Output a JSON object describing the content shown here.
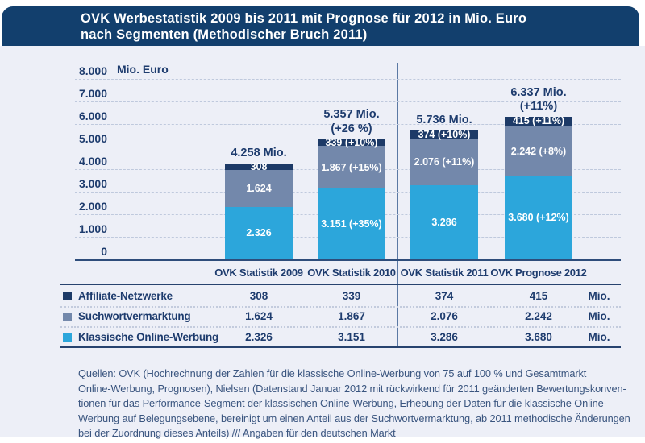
{
  "header": {
    "title_line1": "OVK Werbestatistik 2009 bis 2011 mit Prognose für 2012 in Mio. Euro",
    "title_line2": "nach Segmenten (Methodischer Bruch 2011)"
  },
  "colors": {
    "header_bg": "#123f6d",
    "panel_bg": "#edeff7",
    "text_navy": "#1e3c6e",
    "affiliate": "#1d3a67",
    "suchwort": "#7388ab",
    "klassisch": "#2ca6db",
    "divider": "#5b79a4"
  },
  "chart_data": {
    "type": "bar",
    "stacked": true,
    "unit": "Mio. Euro",
    "ylim": [
      0,
      8000
    ],
    "ytick_step": 1000,
    "yticks": [
      "0",
      "1.000",
      "2.000",
      "3.000",
      "4.000",
      "5.000",
      "6.000",
      "7.000",
      "8.000"
    ],
    "grid": "dashed horizontal",
    "categories": [
      "OVK Statistik 2009",
      "OVK Statistik 2010",
      "OVK Statistik 2011",
      "OVK Prognose 2012"
    ],
    "totals": [
      {
        "label": "4.258 Mio.",
        "sub": ""
      },
      {
        "label": "5.357 Mio.",
        "sub": "(+26 %)"
      },
      {
        "label": "5.736 Mio.",
        "sub": ""
      },
      {
        "label": "6.337 Mio.",
        "sub": "(+11%)"
      }
    ],
    "series": [
      {
        "name": "Affiliate-Netzwerke",
        "color": "#1d3a67",
        "values": [
          308,
          339,
          374,
          415
        ],
        "labels": [
          "308",
          "339 (+10%)",
          "374 (+10%)",
          "415 (+11%)"
        ]
      },
      {
        "name": "Suchwortvermarktung",
        "color": "#7388ab",
        "values": [
          1624,
          1867,
          2076,
          2242
        ],
        "labels": [
          "1.624",
          "1.867 (+15%)",
          "2.076 (+11%)",
          "2.242 (+8%)"
        ]
      },
      {
        "name": "Klassische Online-Werbung",
        "color": "#2ca6db",
        "values": [
          2326,
          3151,
          3286,
          3680
        ],
        "labels": [
          "2.326",
          "3.151 (+35%)",
          "3.286",
          "3.680 (+12%)"
        ]
      }
    ],
    "note": "Vertical divider separates OVK Statistik 2010 and OVK Statistik 2011 (Methodischer Bruch)"
  },
  "table": {
    "headers": [
      "OVK Statistik 2009",
      "OVK Statistik 2010",
      "OVK Statistik 2011",
      "OVK Prognose 2012"
    ],
    "rows": [
      {
        "name": "Affiliate-Netzwerke",
        "values": [
          "308",
          "339",
          "374",
          "415"
        ],
        "unit": "Mio."
      },
      {
        "name": "Suchwortvermarktung",
        "values": [
          "1.624",
          "1.867",
          "2.076",
          "2.242"
        ],
        "unit": "Mio."
      },
      {
        "name": "Klassische Online-Werbung",
        "values": [
          "2.326",
          "3.151",
          "3.286",
          "3.680"
        ],
        "unit": "Mio."
      }
    ]
  },
  "footer": {
    "lines": [
      "Quellen: OVK (Hochrechnung der Zahlen für die klassische Online-Werbung von 75 auf 100 % und Gesamtmarkt",
      "Online-Werbung, Prognosen), Nielsen (Datenstand Januar 2012 mit rückwirkend für 2011 geänderten Bewertungskonven-",
      "tionen für das Performance-Segment der klassischen Online-Werbung, Erhebung der Daten für die klassische Online-",
      "Werbung auf Belegungsebene, bereinigt um einen Anteil aus der Suchwortvermarktung, ab 2011 methodische Änderungen",
      "bei der Zuordnung dieses Anteils) /// Angaben für den deutschen Markt"
    ]
  }
}
